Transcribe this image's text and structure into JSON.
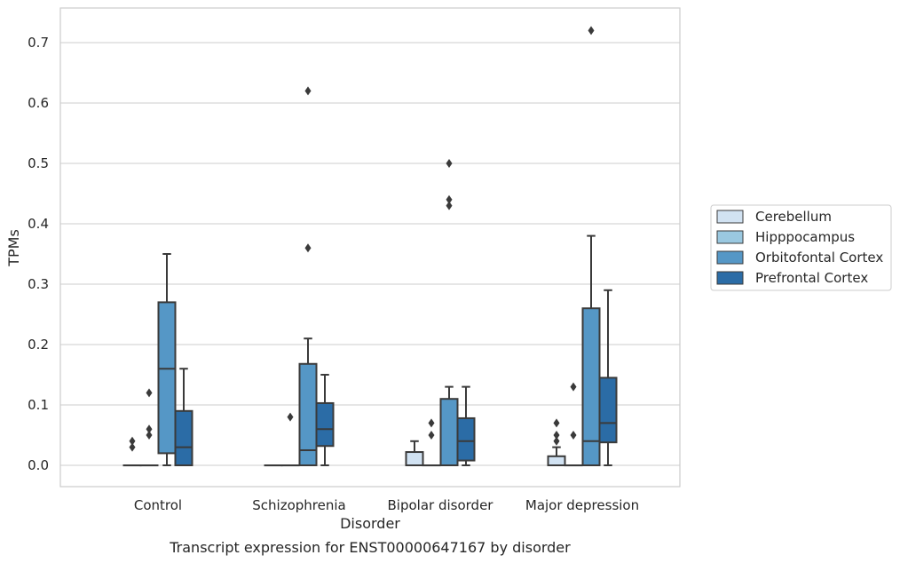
{
  "chart_data": {
    "type": "box",
    "title": "Transcript expression for ENST00000647167 by disorder",
    "xlabel": "Disorder",
    "ylabel": "TPMs",
    "categories": [
      "Control",
      "Schizophrenia",
      "Bipolar disorder",
      "Major depression"
    ],
    "y_ticks": [
      "0.0",
      "0.1",
      "0.2",
      "0.3",
      "0.4",
      "0.5",
      "0.6",
      "0.7"
    ],
    "ylim": [
      -0.035,
      0.76
    ],
    "grid": true,
    "legend_position": "right",
    "series": [
      {
        "name": "Cerebellum",
        "color": "#d1e2f2",
        "boxes": [
          {
            "q1": 0,
            "median": 0,
            "q3": 0,
            "whisker_low": 0,
            "whisker_high": 0,
            "outliers": [
              0.03,
              0.04
            ]
          },
          {
            "q1": 0,
            "median": 0,
            "q3": 0,
            "whisker_low": 0,
            "whisker_high": 0,
            "outliers": []
          },
          {
            "q1": 0,
            "median": 0,
            "q3": 0.022,
            "whisker_low": 0,
            "whisker_high": 0.04,
            "outliers": []
          },
          {
            "q1": 0,
            "median": 0,
            "q3": 0.015,
            "whisker_low": 0,
            "whisker_high": 0.03,
            "outliers": [
              0.04,
              0.05,
              0.07
            ]
          }
        ]
      },
      {
        "name": "Hipppocampus",
        "color": "#9ac8e0",
        "boxes": [
          {
            "q1": 0,
            "median": 0,
            "q3": 0,
            "whisker_low": 0,
            "whisker_high": 0,
            "outliers": [
              0.05,
              0.06,
              0.12
            ]
          },
          {
            "q1": 0,
            "median": 0,
            "q3": 0,
            "whisker_low": 0,
            "whisker_high": 0,
            "outliers": [
              0.08
            ]
          },
          {
            "q1": 0,
            "median": 0,
            "q3": 0,
            "whisker_low": 0,
            "whisker_high": 0,
            "outliers": [
              0.05,
              0.07
            ]
          },
          {
            "q1": 0,
            "median": 0,
            "q3": 0,
            "whisker_low": 0,
            "whisker_high": 0,
            "outliers": [
              0.05,
              0.13
            ]
          }
        ]
      },
      {
        "name": "Orbitofontal Cortex",
        "color": "#5597c6",
        "boxes": [
          {
            "q1": 0.02,
            "median": 0.16,
            "q3": 0.27,
            "whisker_low": 0,
            "whisker_high": 0.35,
            "outliers": []
          },
          {
            "q1": 0,
            "median": 0.025,
            "q3": 0.168,
            "whisker_low": 0,
            "whisker_high": 0.21,
            "outliers": [
              0.36,
              0.62
            ]
          },
          {
            "q1": 0,
            "median": 0,
            "q3": 0.11,
            "whisker_low": 0,
            "whisker_high": 0.13,
            "outliers": [
              0.43,
              0.44,
              0.5
            ]
          },
          {
            "q1": 0,
            "median": 0.04,
            "q3": 0.26,
            "whisker_low": 0,
            "whisker_high": 0.38,
            "outliers": [
              0.72
            ]
          }
        ]
      },
      {
        "name": "Prefrontal Cortex",
        "color": "#2b6ca6",
        "boxes": [
          {
            "q1": 0,
            "median": 0.03,
            "q3": 0.09,
            "whisker_low": 0,
            "whisker_high": 0.16,
            "outliers": []
          },
          {
            "q1": 0.032,
            "median": 0.06,
            "q3": 0.103,
            "whisker_low": 0,
            "whisker_high": 0.15,
            "outliers": []
          },
          {
            "q1": 0.008,
            "median": 0.04,
            "q3": 0.078,
            "whisker_low": 0,
            "whisker_high": 0.13,
            "outliers": []
          },
          {
            "q1": 0.038,
            "median": 0.07,
            "q3": 0.145,
            "whisker_low": 0,
            "whisker_high": 0.29,
            "outliers": []
          }
        ]
      }
    ]
  }
}
